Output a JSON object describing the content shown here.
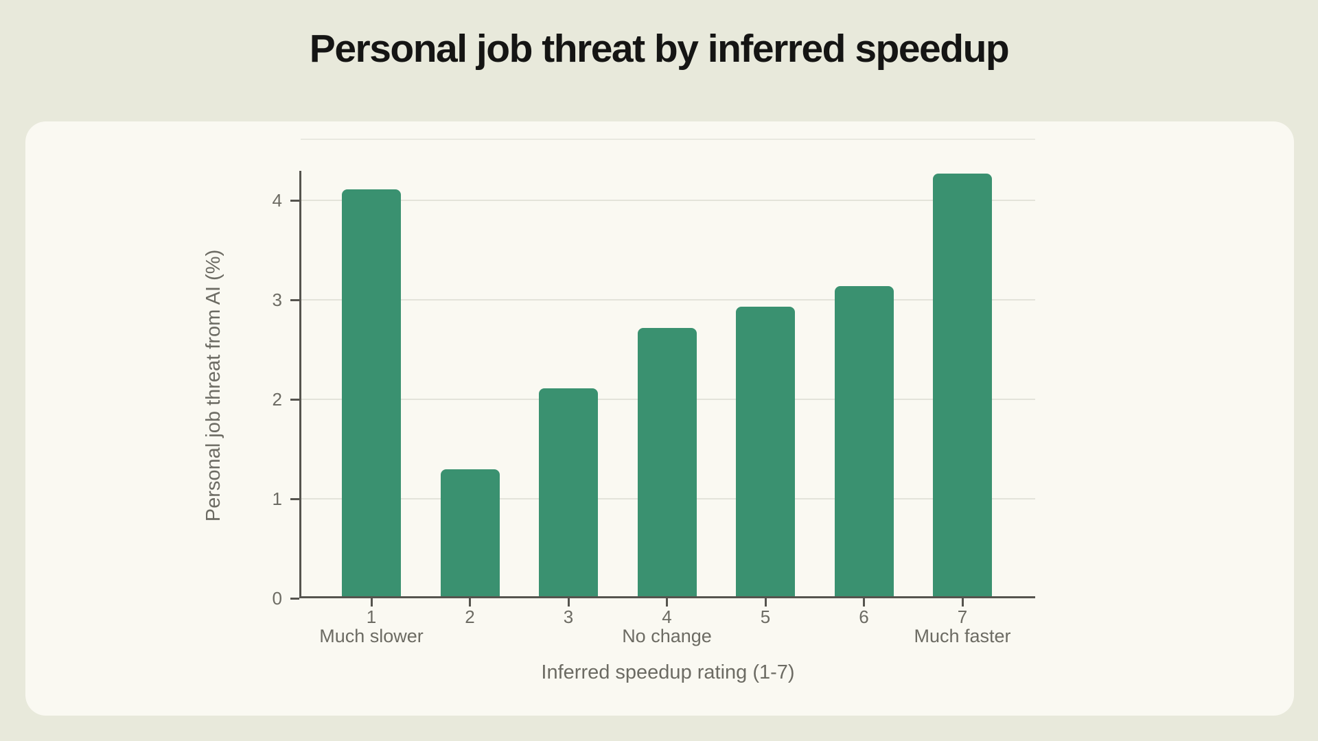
{
  "page": {
    "title": "Personal job threat by inferred speedup"
  },
  "chart_data": {
    "type": "bar",
    "title": "Personal job threat by inferred speedup",
    "xlabel": "Inferred speedup rating (1-7)",
    "ylabel": "Personal job threat from AI (%)",
    "categories": [
      "1",
      "2",
      "3",
      "4",
      "5",
      "6",
      "7"
    ],
    "category_sublabels": [
      "Much slower",
      "",
      "",
      "No change",
      "",
      "",
      "Much faster"
    ],
    "values": [
      4.11,
      1.3,
      2.11,
      2.72,
      2.93,
      3.14,
      4.27
    ],
    "yticks": [
      0,
      1,
      2,
      3,
      4
    ],
    "ylim": [
      0,
      4.6
    ],
    "grid": true,
    "legend_position": "none",
    "bar_color": "#3A9170",
    "background_color": "#e8e9db",
    "card_color": "#faf9f2",
    "axis_color": "#55544e",
    "tick_text_color": "#6c6b63",
    "gridline_color": "#e3e3da"
  }
}
